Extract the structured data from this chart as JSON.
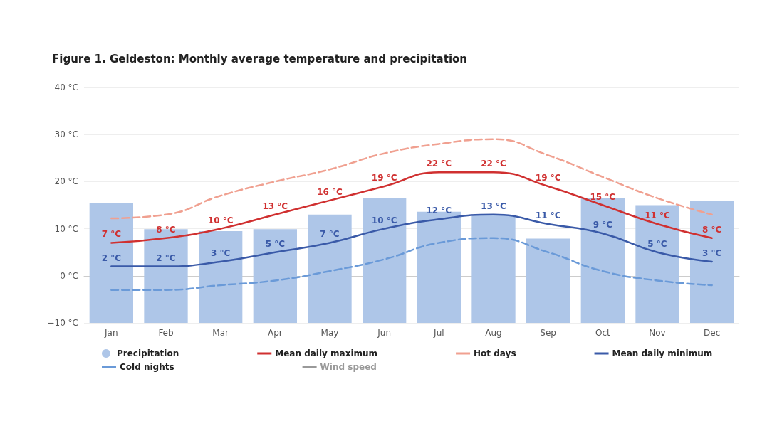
{
  "chart_data": {
    "type": "bar",
    "title": "Figure 1. Geldeston: Monthly average temperature and precipitation",
    "categories": [
      "Jan",
      "Feb",
      "Mar",
      "Apr",
      "May",
      "Jun",
      "Jul",
      "Aug",
      "Sep",
      "Oct",
      "Nov",
      "Dec"
    ],
    "series": [
      {
        "name": "Precipitation",
        "color": "#aec6e8",
        "base": [
          -10,
          -10,
          -10,
          -10,
          -10,
          -10,
          -10,
          -10,
          -10,
          -10,
          -10,
          -10
        ],
        "values": [
          25.4,
          19.9,
          19.5,
          19.9,
          23,
          26.5,
          23.6,
          22.8,
          17.9,
          26.5,
          25,
          26
        ]
      },
      {
        "name": "Mean daily maximum",
        "type": "line",
        "color": "#d03030",
        "line_style": "solid",
        "values": [
          7,
          8,
          10,
          13,
          16,
          19,
          22,
          22,
          19,
          15,
          11,
          8
        ],
        "value_labels": [
          "7 °C",
          "8 °C",
          "10 °C",
          "13 °C",
          "16 °C",
          "19 °C",
          "22 °C",
          "22 °C",
          "19 °C",
          "15 °C",
          "11 °C",
          "8 °C"
        ]
      },
      {
        "name": "Hot days",
        "type": "line",
        "color": "#f0a090",
        "line_style": "dashed",
        "values": [
          12.2,
          13,
          17,
          20,
          22.6,
          26,
          28,
          29,
          25.6,
          21,
          16.5,
          13
        ]
      },
      {
        "name": "Mean daily minimum",
        "type": "line",
        "color": "#3a5aa8",
        "line_style": "solid",
        "values": [
          2,
          2,
          3,
          5,
          7,
          10,
          12,
          13,
          11,
          9,
          5,
          3
        ],
        "value_labels": [
          "2 °C",
          "2 °C",
          "3 °C",
          "5 °C",
          "7 °C",
          "10 °C",
          "12 °C",
          "13 °C",
          "11 °C",
          "9 °C",
          "5 °C",
          "3 °C"
        ]
      },
      {
        "name": "Cold nights",
        "type": "line",
        "color": "#6a9ad8",
        "line_style": "dashed",
        "values": [
          -3,
          -3,
          -2,
          -1,
          1,
          3.5,
          7,
          8,
          5,
          1,
          -1,
          -2
        ]
      },
      {
        "name": "Wind speed",
        "type": "line",
        "color": "#999999",
        "line_style": "solid",
        "values": [
          null,
          null,
          null,
          null,
          null,
          null,
          null,
          null,
          null,
          null,
          null,
          null
        ]
      }
    ],
    "ylim": [
      -10,
      40
    ],
    "yticks": [
      {
        "value": -10,
        "label": "−10 °C"
      },
      {
        "value": 0,
        "label": "0 °C"
      },
      {
        "value": 10,
        "label": "10 °C"
      },
      {
        "value": 20,
        "label": "20 °C"
      },
      {
        "value": 30,
        "label": "30 °C"
      },
      {
        "value": 40,
        "label": "40 °C"
      }
    ],
    "grid": "y",
    "legend": "bottom",
    "marker": "none"
  }
}
